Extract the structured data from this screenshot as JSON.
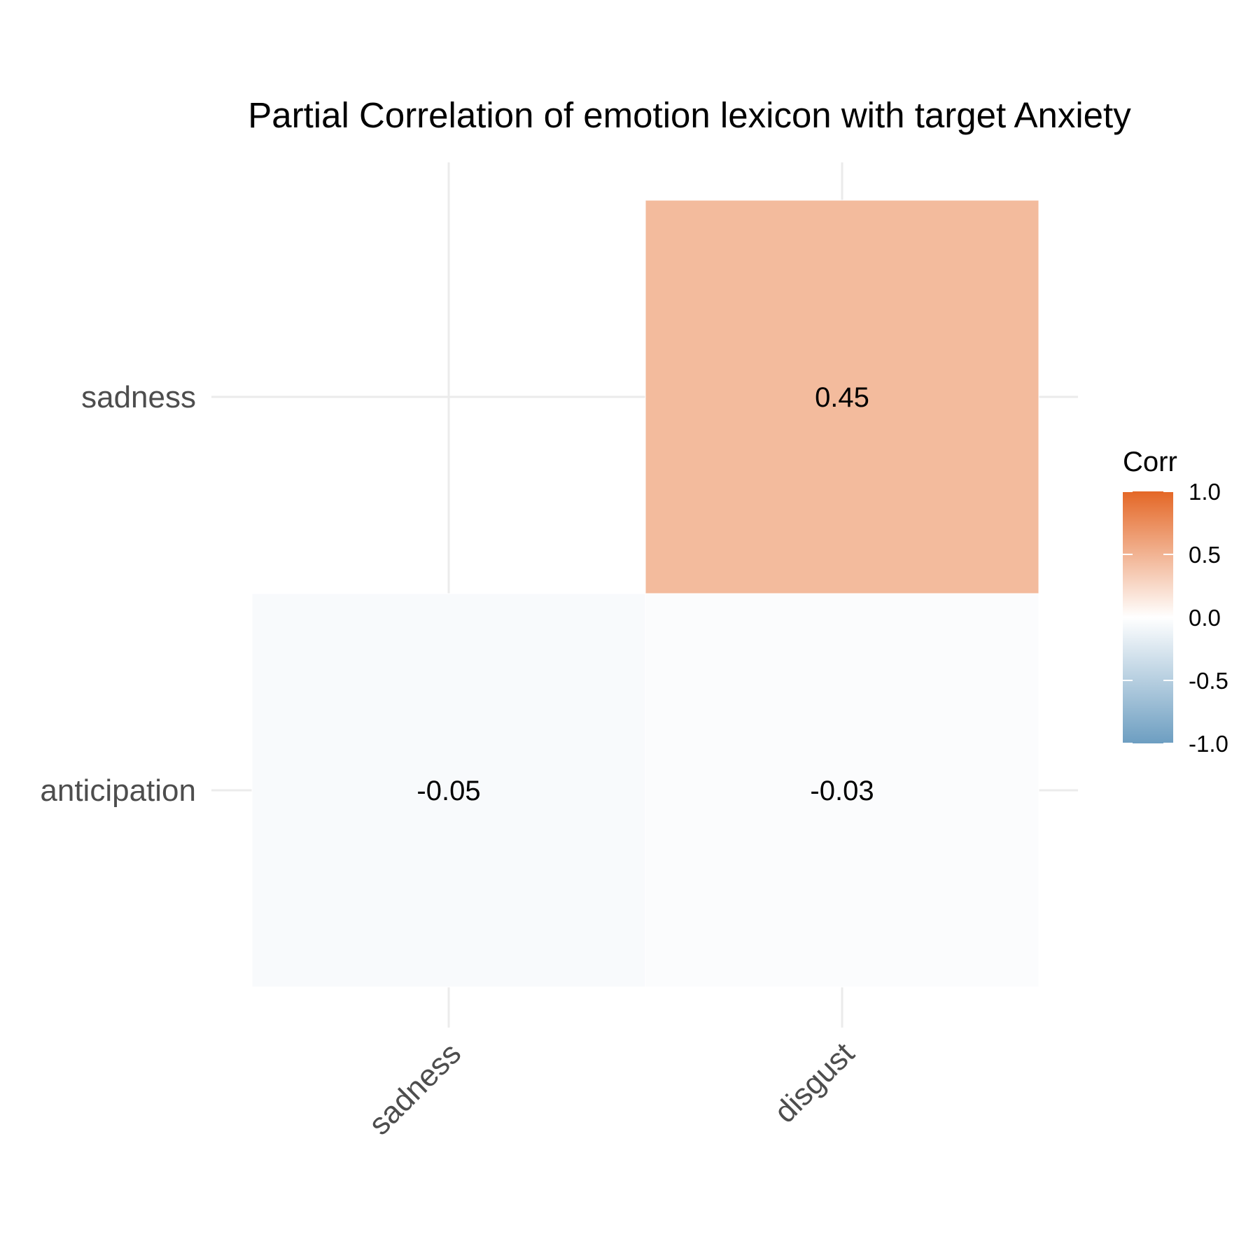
{
  "chart_data": {
    "type": "heatmap",
    "title": "Partial Correlation of emotion lexicon with target Anxiety",
    "x_categories": [
      "sadness",
      "disgust"
    ],
    "y_categories": [
      "anticipation",
      "sadness"
    ],
    "cells": [
      {
        "x": "sadness",
        "y": "anticipation",
        "value": -0.05,
        "label": "-0.05"
      },
      {
        "x": "disgust",
        "y": "anticipation",
        "value": -0.03,
        "label": "-0.03"
      },
      {
        "x": "disgust",
        "y": "sadness",
        "value": 0.45,
        "label": "0.45"
      }
    ],
    "grid": true,
    "legend": {
      "title": "Corr",
      "position": "right",
      "limits": [
        -1,
        1
      ],
      "ticks": [
        {
          "value": 1.0,
          "label": "1.0"
        },
        {
          "value": 0.5,
          "label": "0.5"
        },
        {
          "value": 0.0,
          "label": "0.0"
        },
        {
          "value": -0.5,
          "label": "-0.5"
        },
        {
          "value": -1.0,
          "label": "-1.0"
        }
      ],
      "colors": {
        "low": "#6d9ec1",
        "mid": "#ffffff",
        "high": "#e46726"
      }
    }
  }
}
